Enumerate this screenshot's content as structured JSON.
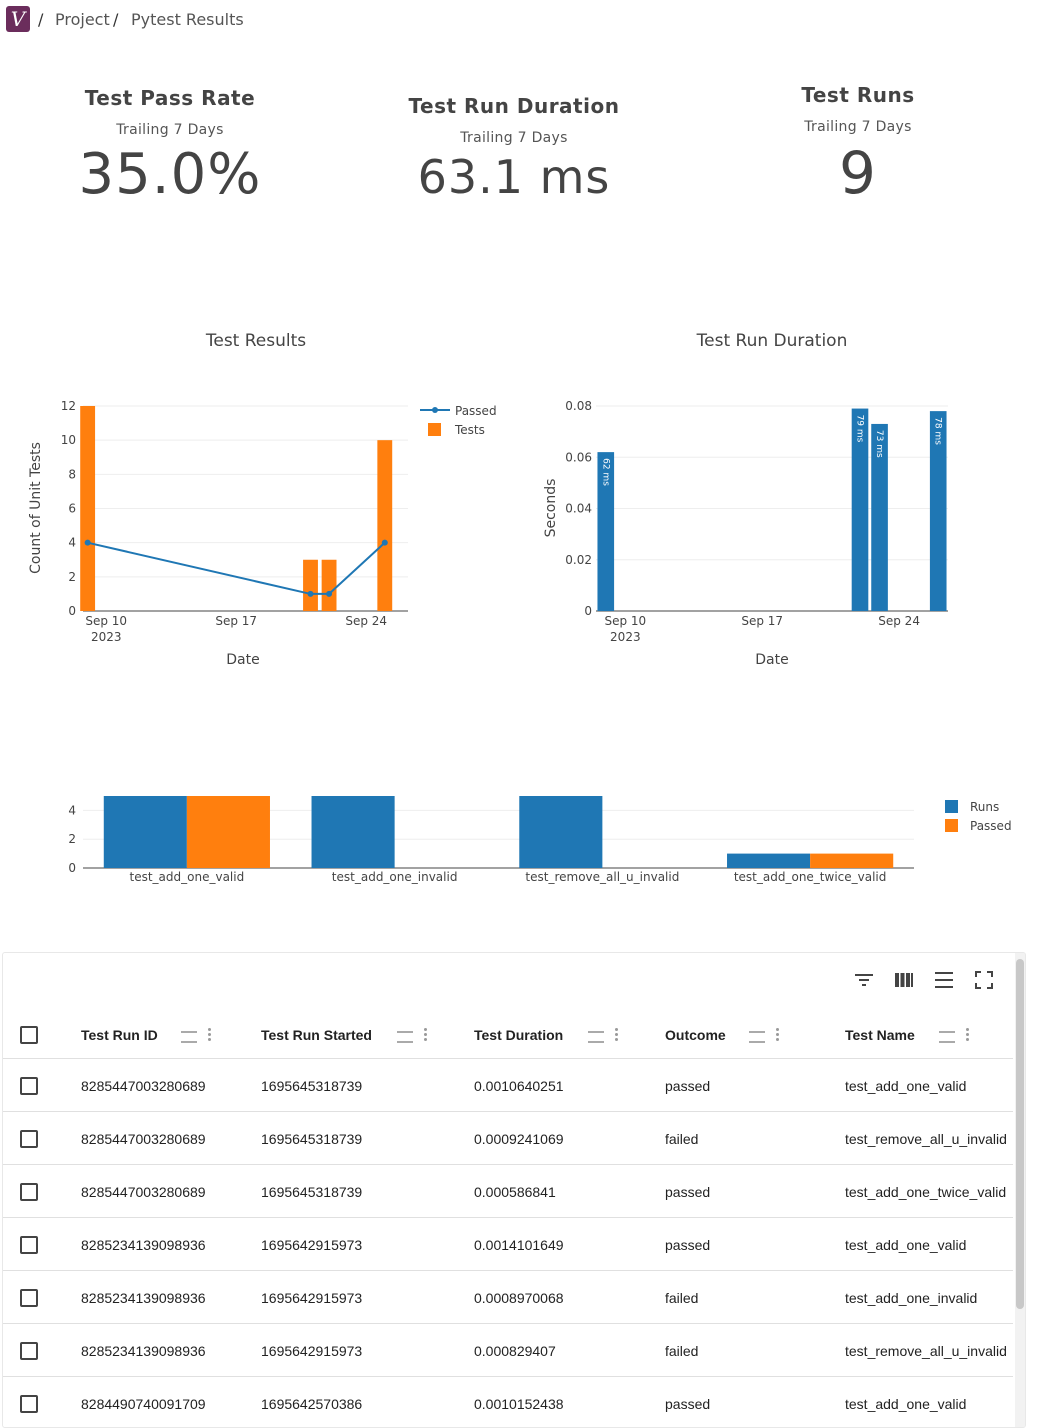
{
  "breadcrumb": {
    "logo_text": "V",
    "sep1": "/",
    "project": "Project",
    "sep2": "/",
    "current": "Pytest Results"
  },
  "kpis": [
    {
      "title": "Test Pass Rate",
      "subtitle": "Trailing 7 Days",
      "value": "35.0%"
    },
    {
      "title": "Test Run Duration",
      "subtitle": "Trailing 7 Days",
      "value": "63.1 ms"
    },
    {
      "title": "Test Runs",
      "subtitle": "Trailing 7 Days",
      "value": "9"
    }
  ],
  "chart_data": [
    {
      "type": "bar",
      "title": "Test Results",
      "xlabel": "Date",
      "ylabel": "Count of Unit Tests",
      "ylim": [
        0,
        12
      ],
      "yticks": [
        "0",
        "2",
        "4",
        "6",
        "8",
        "10",
        "12"
      ],
      "xticks": [
        "Sep 10\n2023",
        "Sep 17",
        "Sep 24"
      ],
      "legend_position": "top-right",
      "legend": [
        "Passed",
        "Tests"
      ],
      "series": [
        {
          "name": "Tests",
          "type": "bar",
          "color": "#ff7f0e",
          "points": [
            {
              "x": "2023-09-09",
              "y": 12
            },
            {
              "x": "2023-09-21",
              "y": 3
            },
            {
              "x": "2023-09-22",
              "y": 3
            },
            {
              "x": "2023-09-25",
              "y": 10
            }
          ]
        },
        {
          "name": "Passed",
          "type": "line",
          "color": "#1f77b4",
          "points": [
            {
              "x": "2023-09-09",
              "y": 4
            },
            {
              "x": "2023-09-21",
              "y": 1
            },
            {
              "x": "2023-09-22",
              "y": 1
            },
            {
              "x": "2023-09-25",
              "y": 4
            }
          ]
        }
      ]
    },
    {
      "type": "bar",
      "title": "Test Run Duration",
      "xlabel": "Date",
      "ylabel": "Seconds",
      "ylim": [
        0,
        0.08
      ],
      "yticks": [
        "0",
        "0.02",
        "0.04",
        "0.06",
        "0.08"
      ],
      "xticks": [
        "Sep 10\n2023",
        "Sep 17",
        "Sep 24"
      ],
      "series": [
        {
          "name": "",
          "color": "#1f77b4",
          "points": [
            {
              "x": "2023-09-09",
              "y": 0.062,
              "label": "62 ms"
            },
            {
              "x": "2023-09-22",
              "y": 0.079,
              "label": "79 ms"
            },
            {
              "x": "2023-09-23",
              "y": 0.073,
              "label": "73 ms"
            },
            {
              "x": "2023-09-26",
              "y": 0.078,
              "label": "78 ms"
            }
          ]
        }
      ]
    },
    {
      "type": "bar",
      "title": "",
      "xlabel": "",
      "ylabel": "",
      "ylim": [
        0,
        5
      ],
      "yticks": [
        "0",
        "2",
        "4"
      ],
      "categories": [
        "test_add_one_valid",
        "test_add_one_invalid",
        "test_remove_all_u_invalid",
        "test_add_one_twice_valid"
      ],
      "legend_position": "right",
      "series": [
        {
          "name": "Runs",
          "color": "#1f77b4",
          "values": [
            5,
            5,
            5,
            1
          ]
        },
        {
          "name": "Passed",
          "color": "#ff7f0e",
          "values": [
            5,
            0,
            0,
            1
          ]
        }
      ]
    }
  ],
  "table": {
    "toolbar_icons": [
      "filter-icon",
      "columns-icon",
      "density-icon",
      "fullscreen-icon"
    ],
    "columns": [
      "Test Run ID",
      "Test Run Started",
      "Test Duration",
      "Outcome",
      "Test Name"
    ],
    "rows": [
      [
        "8285447003280689",
        "1695645318739",
        "0.0010640251",
        "passed",
        "test_add_one_valid"
      ],
      [
        "8285447003280689",
        "1695645318739",
        "0.0009241069",
        "failed",
        "test_remove_all_u_invalid"
      ],
      [
        "8285447003280689",
        "1695645318739",
        "0.000586841",
        "passed",
        "test_add_one_twice_valid"
      ],
      [
        "8285234139098936",
        "1695642915973",
        "0.0014101649",
        "passed",
        "test_add_one_valid"
      ],
      [
        "8285234139098936",
        "1695642915973",
        "0.0008970068",
        "failed",
        "test_add_one_invalid"
      ],
      [
        "8285234139098936",
        "1695642915973",
        "0.000829407",
        "failed",
        "test_remove_all_u_invalid"
      ],
      [
        "8284490740091709",
        "1695642570386",
        "0.0010152438",
        "passed",
        "test_add_one_valid"
      ]
    ]
  }
}
